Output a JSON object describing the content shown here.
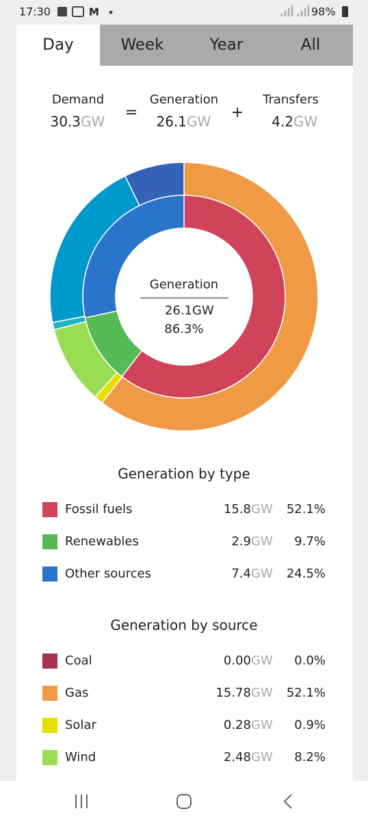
{
  "status_bar": {
    "time": "17:30",
    "battery": "98%"
  },
  "tabs": [
    "Day",
    "Week",
    "Year",
    "All"
  ],
  "unit": "GW",
  "summary": {
    "demand": {
      "label": "Demand",
      "value": "30.3"
    },
    "equals": "=",
    "generation": {
      "label": "Generation",
      "value": "26.1"
    },
    "plus": "+",
    "transfers": {
      "label": "Transfers",
      "value": "4.2"
    }
  },
  "donut_center": {
    "label": "Generation",
    "value": "26.1",
    "percent": "86.3%"
  },
  "by_type": {
    "title": "Generation by type",
    "rows": [
      {
        "label": "Fossil fuels",
        "gw": "15.8",
        "percent": "52.1%",
        "color": "#d0435a"
      },
      {
        "label": "Renewables",
        "gw": "2.9",
        "percent": "9.7%",
        "color": "#55b955"
      },
      {
        "label": "Other sources",
        "gw": "7.4",
        "percent": "24.5%",
        "color": "#2a74cc"
      }
    ]
  },
  "by_source": {
    "title": "Generation by source",
    "rows": [
      {
        "label": "Coal",
        "gw": "0.00",
        "percent": "0.0%",
        "color": "#a83050"
      },
      {
        "label": "Gas",
        "gw": "15.78",
        "percent": "52.1%",
        "color": "#f09a45"
      },
      {
        "label": "Solar",
        "gw": "0.28",
        "percent": "0.9%",
        "color": "#e6e000"
      },
      {
        "label": "Wind",
        "gw": "2.48",
        "percent": "8.2%",
        "color": "#99dd55"
      }
    ]
  }
}
